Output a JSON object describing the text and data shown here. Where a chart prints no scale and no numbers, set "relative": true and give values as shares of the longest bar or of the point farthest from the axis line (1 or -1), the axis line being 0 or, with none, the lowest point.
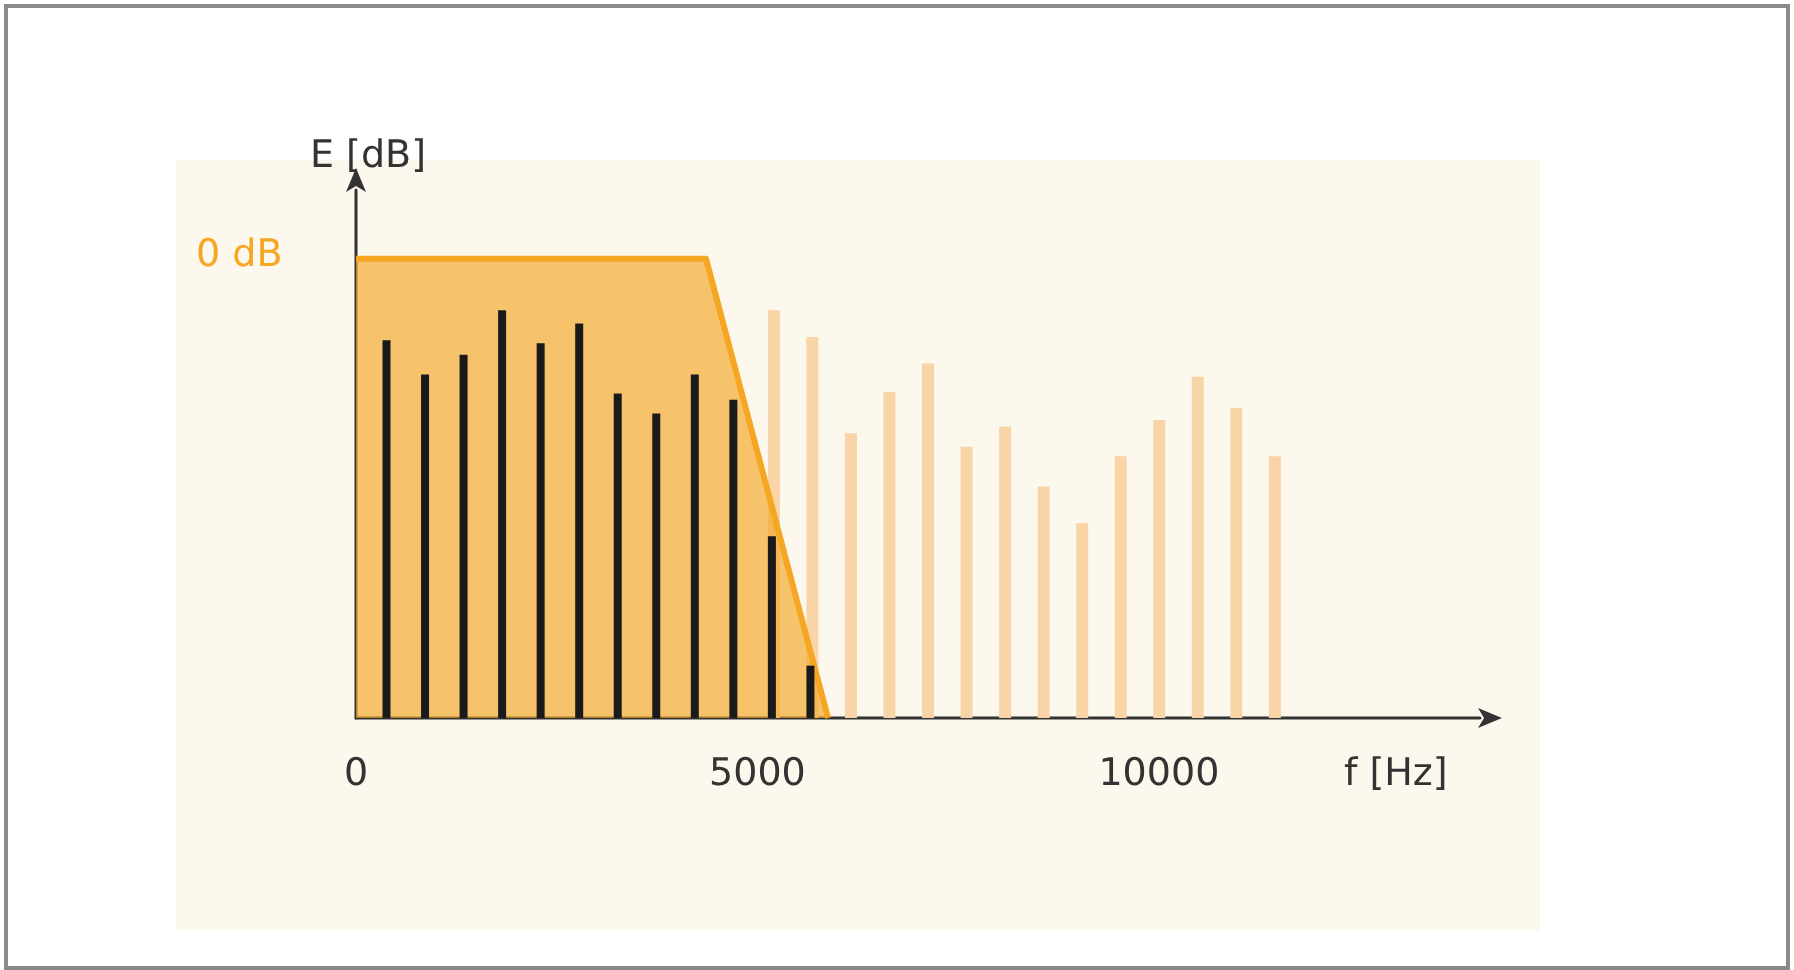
{
  "chart_data": {
    "type": "bar",
    "relative": true,
    "xlabel": "f [Hz]",
    "ylabel": "E [dB]",
    "xlim": [
      0,
      14000
    ],
    "xticks": [
      0,
      5000,
      10000
    ],
    "tick_labels": "x",
    "annotations": [
      "0 dB"
    ],
    "series": [
      {
        "color": "#f8d4a6",
        "x": [
          5180,
          5660,
          6140,
          6620,
          7100,
          7580,
          8060,
          8540,
          9020,
          9500,
          9980,
          10460,
          10940,
          11420
        ],
        "values": [
          0.888,
          0.83,
          0.62,
          0.71,
          0.772,
          0.591,
          0.635,
          0.504,
          0.424,
          0.57,
          0.649,
          0.743,
          0.675,
          0.57
        ]
      },
      {
        "type": "area",
        "color": "#f5a623",
        "x": [
          0,
          4360,
          5880
        ],
        "values": [
          1,
          1,
          0
        ]
      },
      {
        "color": "#1a1a1a",
        "x": [
          380,
          860,
          1340,
          1820,
          2300,
          2780,
          3260,
          3740,
          4220,
          4700,
          5180,
          5660
        ],
        "values": [
          0.823,
          0.748,
          0.791,
          0.888,
          0.816,
          0.859,
          0.707,
          0.663,
          0.748,
          0.693,
          0.396,
          0.114
        ]
      }
    ]
  }
}
